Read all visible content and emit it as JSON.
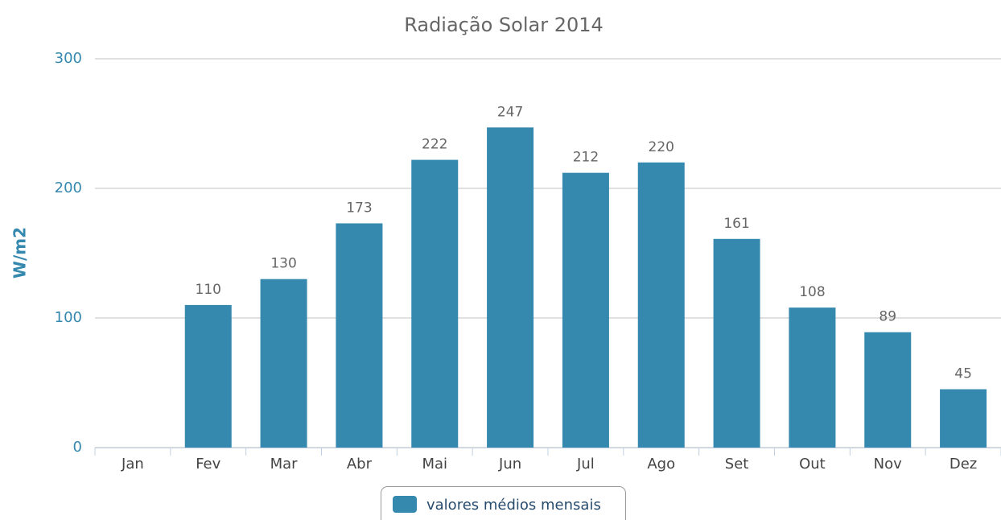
{
  "chart_data": {
    "type": "bar",
    "title": "Radiação Solar 2014",
    "y_label": "W/m2",
    "categories": [
      "Jan",
      "Fev",
      "Mar",
      "Abr",
      "Mai",
      "Jun",
      "Jul",
      "Ago",
      "Set",
      "Out",
      "Nov",
      "Dez"
    ],
    "series": [
      {
        "name": "valores médios mensais",
        "color": "#3588ae",
        "values": [
          null,
          110,
          130,
          173,
          222,
          247,
          212,
          220,
          161,
          108,
          89,
          45
        ]
      }
    ],
    "ylim": [
      0,
      300
    ],
    "yticks": [
      0,
      100,
      200,
      300
    ],
    "grid": true,
    "legend": "bottom"
  }
}
